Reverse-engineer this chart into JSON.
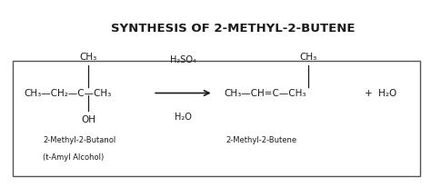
{
  "title": "SYNTHESIS OF 2-METHYL-2-BUTENE",
  "title_fontsize": 9.5,
  "title_fontweight": "bold",
  "bg_color": "#ffffff",
  "box_color": "#555555",
  "text_color": "#1a1a1a",
  "figsize": [
    4.74,
    2.07
  ],
  "dpi": 100,
  "reactant_main": "CH₃—CH₂—C—CH₃",
  "reactant_top": "CH₃",
  "reactant_bottom": "OH",
  "reactant_label1": "2-Methyl-2-Butanol",
  "reactant_label2": "(t-Amyl Alcohol)",
  "reagent_top": "H₂SO₄",
  "reagent_bottom": "H₂O",
  "product_main": "CH₃—CH=C—CH₃",
  "product_top": "CH₃",
  "product_label": "2-Methyl-2-Butene",
  "byproduct": "+  H₂O",
  "font_family": "DejaVu Sans"
}
